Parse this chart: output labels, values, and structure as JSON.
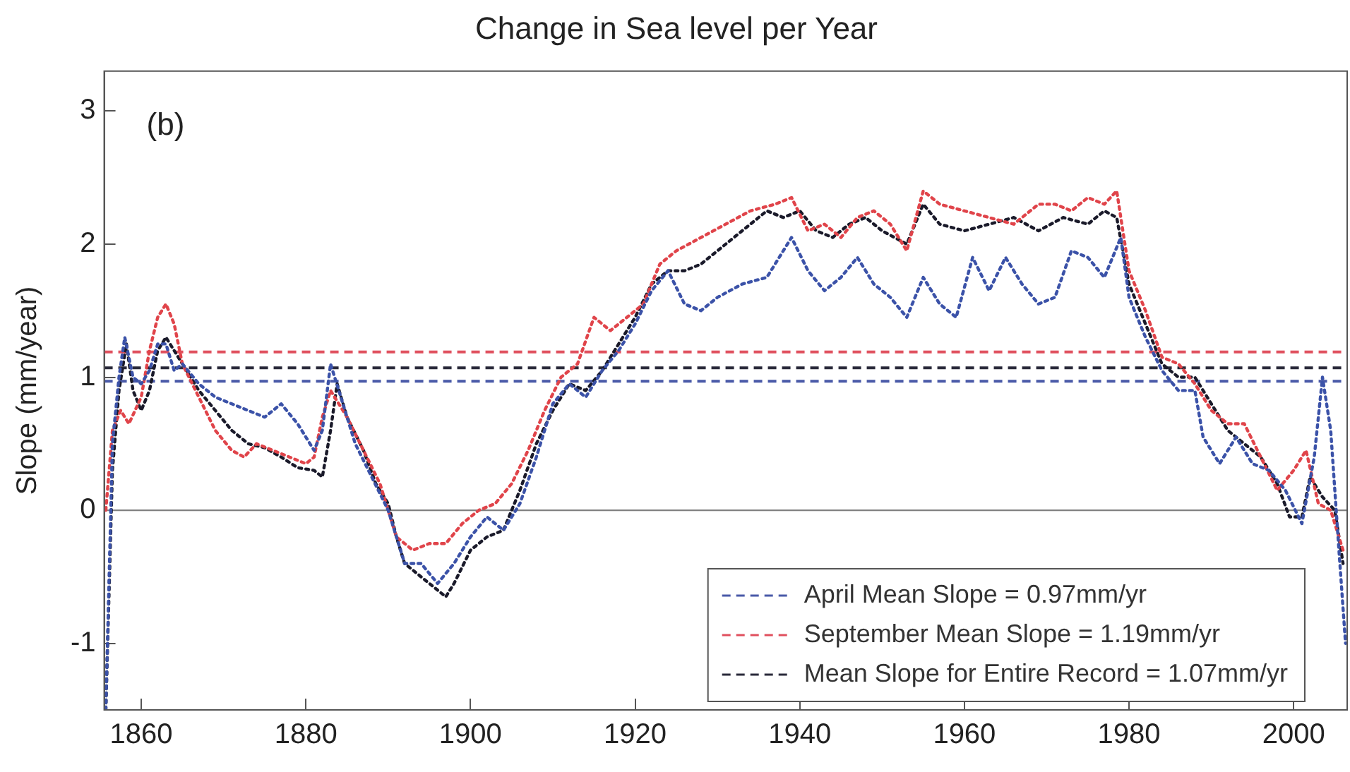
{
  "chart_data": {
    "type": "line",
    "title": "Change in Sea level per Year",
    "ylabel": "Slope (mm/year)",
    "xlim": [
      1855.5,
      2006.5
    ],
    "xticks": [
      1860,
      1880,
      1900,
      1920,
      1940,
      1960,
      1980,
      2000
    ],
    "ylim": [
      -1.5,
      3.3
    ],
    "yticks": [
      -1,
      0,
      1,
      2,
      3
    ],
    "grid": false,
    "legend": "bottom right",
    "marker": "none",
    "line_style": "dotted",
    "annotations": [
      "(b)"
    ],
    "ref_lines": [
      {
        "axis": "y",
        "value": 0,
        "label": null,
        "color": "#808080",
        "line_style": "solid"
      },
      {
        "axis": "y",
        "value": 0.97,
        "label": "April Mean Slope = 0.97mm/yr",
        "color": "#4a5aa8",
        "line_style": "dashed"
      },
      {
        "axis": "y",
        "value": 1.19,
        "label": "September Mean Slope = 1.19mm/yr",
        "color": "#e0505e",
        "line_style": "dashed"
      },
      {
        "axis": "y",
        "value": 1.07,
        "label": "Mean Slope for Entire Record = 1.07mm/yr",
        "color": "#2a2a3a",
        "line_style": "dashed"
      }
    ],
    "series": [
      {
        "color": "#3b52a8",
        "x": [
          1855.7,
          1856.5,
          1857.3,
          1858,
          1859,
          1860,
          1861,
          1862,
          1863,
          1864,
          1865,
          1867,
          1869,
          1871,
          1873,
          1875,
          1877,
          1879,
          1881,
          1882,
          1883,
          1884,
          1886,
          1888,
          1890,
          1892,
          1894,
          1896,
          1898,
          1900,
          1902,
          1904,
          1906,
          1908,
          1910,
          1912,
          1914,
          1916,
          1918,
          1920,
          1922,
          1924,
          1926,
          1928,
          1930,
          1933,
          1936,
          1939,
          1941,
          1943,
          1945,
          1947,
          1949,
          1951,
          1953,
          1955,
          1957,
          1959,
          1961,
          1963,
          1965,
          1967,
          1969,
          1971,
          1973,
          1975,
          1977,
          1979,
          1980,
          1982,
          1984,
          1986,
          1988,
          1989,
          1991,
          1993,
          1995,
          1997,
          1999,
          2001,
          2002.5,
          2003.5,
          2004.5,
          2005.5,
          2006.3
        ],
        "values": [
          -1.5,
          0.5,
          1.0,
          1.3,
          1.0,
          0.95,
          1.05,
          1.25,
          1.25,
          1.05,
          1.1,
          0.95,
          0.85,
          0.8,
          0.75,
          0.7,
          0.8,
          0.65,
          0.45,
          0.6,
          1.1,
          0.9,
          0.5,
          0.25,
          0.0,
          -0.4,
          -0.4,
          -0.55,
          -0.4,
          -0.2,
          -0.05,
          -0.15,
          0.05,
          0.4,
          0.8,
          0.95,
          0.85,
          1.05,
          1.2,
          1.4,
          1.65,
          1.8,
          1.55,
          1.5,
          1.6,
          1.7,
          1.75,
          2.05,
          1.8,
          1.65,
          1.75,
          1.9,
          1.7,
          1.6,
          1.45,
          1.75,
          1.55,
          1.45,
          1.9,
          1.65,
          1.9,
          1.7,
          1.55,
          1.6,
          1.95,
          1.9,
          1.75,
          2.05,
          1.6,
          1.3,
          1.05,
          0.9,
          0.9,
          0.55,
          0.35,
          0.55,
          0.35,
          0.3,
          0.15,
          -0.1,
          0.4,
          1.0,
          0.6,
          -0.3,
          -1.0
        ]
      },
      {
        "color": "#e0444a",
        "x": [
          1855.7,
          1856.5,
          1857.5,
          1858.5,
          1860,
          1861,
          1862,
          1863,
          1864,
          1865,
          1867,
          1869,
          1871,
          1872.5,
          1874,
          1876,
          1878,
          1880,
          1881,
          1882,
          1883,
          1885,
          1887,
          1889,
          1890,
          1891,
          1893,
          1895,
          1897,
          1899,
          1901,
          1903,
          1905,
          1907,
          1909,
          1911,
          1913,
          1915,
          1917,
          1919,
          1921,
          1923,
          1925,
          1928,
          1931,
          1934,
          1937,
          1939,
          1941,
          1943,
          1945,
          1947,
          1949,
          1951,
          1953,
          1955,
          1957,
          1960,
          1963,
          1966,
          1969,
          1971,
          1973,
          1975,
          1977,
          1978.5,
          1980,
          1982,
          1984,
          1986,
          1988,
          1990,
          1992,
          1994,
          1996,
          1998,
          2000,
          2001.5,
          2003,
          2004.5,
          2006
        ],
        "values": [
          0,
          0.6,
          0.75,
          0.65,
          0.85,
          1.2,
          1.45,
          1.55,
          1.4,
          1.1,
          0.85,
          0.6,
          0.45,
          0.4,
          0.5,
          0.45,
          0.4,
          0.35,
          0.4,
          0.7,
          0.9,
          0.7,
          0.45,
          0.2,
          0.0,
          -0.2,
          -0.3,
          -0.25,
          -0.25,
          -0.1,
          0.0,
          0.05,
          0.2,
          0.45,
          0.75,
          1.0,
          1.1,
          1.45,
          1.35,
          1.45,
          1.55,
          1.85,
          1.95,
          2.05,
          2.15,
          2.25,
          2.3,
          2.35,
          2.1,
          2.15,
          2.05,
          2.2,
          2.25,
          2.15,
          1.95,
          2.4,
          2.3,
          2.25,
          2.2,
          2.15,
          2.3,
          2.3,
          2.25,
          2.35,
          2.3,
          2.4,
          1.8,
          1.5,
          1.15,
          1.1,
          0.95,
          0.75,
          0.65,
          0.65,
          0.4,
          0.15,
          0.3,
          0.45,
          0.05,
          0.0,
          -0.3
        ]
      },
      {
        "color": "#1a1a2a",
        "x": [
          1855.7,
          1856.5,
          1857.3,
          1858.2,
          1859,
          1860,
          1861,
          1862,
          1863,
          1864,
          1865,
          1867,
          1869,
          1871,
          1873,
          1875,
          1877,
          1879,
          1881,
          1882,
          1883,
          1883.8,
          1885,
          1887,
          1888.5,
          1890,
          1891,
          1892,
          1894,
          1897,
          1898,
          1900,
          1902,
          1904,
          1906,
          1908,
          1910,
          1912,
          1914,
          1916,
          1918,
          1920,
          1922,
          1924,
          1926,
          1928,
          1930,
          1932,
          1934,
          1936,
          1938,
          1940,
          1942,
          1944,
          1946,
          1948,
          1950,
          1953,
          1955,
          1957,
          1960,
          1963,
          1966,
          1969,
          1972,
          1975,
          1977,
          1978.5,
          1980,
          1982,
          1984,
          1986,
          1988,
          1990,
          1992,
          1994,
          1996,
          1998,
          1999.5,
          2001,
          2002,
          2003.5,
          2005,
          2006
        ],
        "values": [
          -1.5,
          0.3,
          0.9,
          1.25,
          0.9,
          0.75,
          0.9,
          1.2,
          1.3,
          1.2,
          1.1,
          0.9,
          0.75,
          0.6,
          0.5,
          0.47,
          0.4,
          0.32,
          0.3,
          0.25,
          0.6,
          0.95,
          0.7,
          0.45,
          0.2,
          0.05,
          -0.2,
          -0.4,
          -0.5,
          -0.65,
          -0.55,
          -0.3,
          -0.2,
          -0.15,
          0.15,
          0.5,
          0.75,
          0.95,
          0.9,
          1.05,
          1.25,
          1.45,
          1.7,
          1.8,
          1.8,
          1.85,
          1.95,
          2.05,
          2.15,
          2.25,
          2.2,
          2.25,
          2.1,
          2.05,
          2.15,
          2.2,
          2.1,
          2.0,
          2.3,
          2.15,
          2.1,
          2.15,
          2.2,
          2.1,
          2.2,
          2.15,
          2.25,
          2.2,
          1.7,
          1.4,
          1.1,
          1.0,
          1.0,
          0.8,
          0.6,
          0.5,
          0.4,
          0.2,
          -0.05,
          -0.05,
          0.25,
          0.1,
          0.0,
          -0.4
        ]
      }
    ]
  }
}
